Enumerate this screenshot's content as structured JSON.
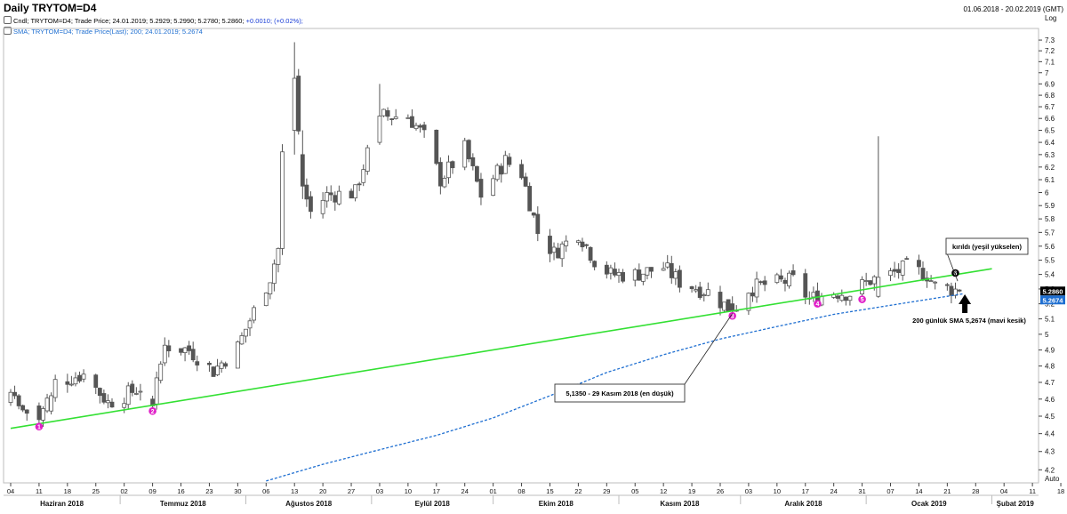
{
  "header": {
    "title": "Daily TRYTOM=D4",
    "date_range": "01.06.2018 - 20.02.2019 (GMT)",
    "legend_candle": "Cndl; TRYTOM=D4; Trade Price; 24.01.2019; 5.2929; 5.2990; 5.2780; 5.2860;",
    "legend_candle_change": "+0.0010; (+0.02%);",
    "legend_sma": "SMA; TRYTOM=D4; Trade Price(Last); 200; 24.01.2019; 5.2674",
    "scale_label": "Log",
    "auto_label": "Auto"
  },
  "colors": {
    "candle": "#555555",
    "trendline": "#33e033",
    "sma": "#1f6fd1",
    "marker": "#e020c8",
    "last_price_box": "#000000",
    "sma_box": "#1f6fd1"
  },
  "chart_data": {
    "type": "candlestick",
    "scale": "log",
    "ylim": [
      4.13,
      7.41
    ],
    "y_ticks": [
      4.2,
      4.3,
      4.4,
      4.5,
      4.6,
      4.7,
      4.8,
      4.9,
      5,
      5.1,
      5.2,
      5.3,
      5.4,
      5.5,
      5.6,
      5.7,
      5.8,
      5.9,
      6,
      6.1,
      6.2,
      6.3,
      6.4,
      6.5,
      6.6,
      6.7,
      6.8,
      6.9,
      7,
      7.1,
      7.2,
      7.3
    ],
    "y_tick_labels": [
      "4.2",
      "4.3",
      "4.4",
      "4.5",
      "4.6",
      "4.7",
      "4.8",
      "4.9",
      "5",
      "5.1",
      "5.2",
      "5.3",
      "5.4",
      "5.5",
      "5.6",
      "5.7",
      "5.8",
      "5.9",
      "6",
      "6.1",
      "6.2",
      "6.3",
      "6.4",
      "6.5",
      "6.6",
      "6.7",
      "6.8",
      "6.9",
      "7",
      "7.1",
      "7.2",
      "7.3"
    ],
    "x_ticks": [
      "04",
      "11",
      "18",
      "25",
      "02",
      "09",
      "16",
      "23",
      "30",
      "06",
      "13",
      "20",
      "27",
      "03",
      "10",
      "17",
      "24",
      "01",
      "08",
      "15",
      "22",
      "29",
      "05",
      "12",
      "19",
      "26",
      "03",
      "10",
      "17",
      "24",
      "31",
      "07",
      "14",
      "21",
      "28",
      "04",
      "11",
      "18"
    ],
    "month_labels": [
      "Haziran 2018",
      "Temmuz 2018",
      "Ağustos 2018",
      "Eylül 2018",
      "Ekim 2018",
      "Kasım 2018",
      "Aralık 2018",
      "Ocak 2019",
      "Şubat 2019"
    ],
    "first_date": "2018-06-04",
    "last_price_label": "5.2860",
    "sma_label": "5.2674",
    "anchors": [
      [
        "2018-06-04",
        4.58
      ],
      [
        "2018-06-11",
        4.48
      ],
      [
        "2018-06-15",
        4.7
      ],
      [
        "2018-06-22",
        4.75
      ],
      [
        "2018-06-28",
        4.58
      ],
      [
        "2018-07-02",
        4.62
      ],
      [
        "2018-07-06",
        4.67
      ],
      [
        "2018-07-09",
        4.56
      ],
      [
        "2018-07-12",
        4.93
      ],
      [
        "2018-07-18",
        4.9
      ],
      [
        "2018-07-24",
        4.77
      ],
      [
        "2018-07-30",
        4.92
      ],
      [
        "2018-08-03",
        5.15
      ],
      [
        "2018-08-07",
        5.38
      ],
      [
        "2018-08-09",
        5.58
      ],
      [
        "2018-08-10",
        6.3
      ],
      [
        "2018-08-13",
        6.95
      ],
      [
        "2018-08-15",
        6.05
      ],
      [
        "2018-08-17",
        5.85
      ],
      [
        "2018-08-21",
        5.98
      ],
      [
        "2018-08-28",
        6.0
      ],
      [
        "2018-09-03",
        6.62
      ],
      [
        "2018-09-10",
        6.62
      ],
      [
        "2018-09-14",
        6.45
      ],
      [
        "2018-09-18",
        6.1
      ],
      [
        "2018-09-24",
        6.35
      ],
      [
        "2018-09-28",
        5.98
      ],
      [
        "2018-10-04",
        6.25
      ],
      [
        "2018-10-08",
        6.15
      ],
      [
        "2018-10-12",
        5.7
      ],
      [
        "2018-10-16",
        5.55
      ],
      [
        "2018-10-22",
        5.7
      ],
      [
        "2018-10-26",
        5.5
      ],
      [
        "2018-10-30",
        5.4
      ],
      [
        "2018-11-05",
        5.4
      ],
      [
        "2018-11-12",
        5.45
      ],
      [
        "2018-11-16",
        5.35
      ],
      [
        "2018-11-23",
        5.28
      ],
      [
        "2018-11-29",
        5.15
      ],
      [
        "2018-12-03",
        5.3
      ],
      [
        "2018-12-07",
        5.33
      ],
      [
        "2018-12-14",
        5.36
      ],
      [
        "2018-12-18",
        5.23
      ],
      [
        "2018-12-24",
        5.28
      ],
      [
        "2018-12-28",
        5.27
      ],
      [
        "2019-01-02",
        5.36
      ],
      [
        "2019-01-07",
        5.4
      ],
      [
        "2019-01-11",
        5.45
      ],
      [
        "2019-01-16",
        5.4
      ],
      [
        "2019-01-18",
        5.32
      ],
      [
        "2019-01-22",
        5.3
      ],
      [
        "2019-01-24",
        5.286
      ]
    ],
    "candles": [
      [
        "2018-06-04",
        4.58,
        4.66,
        4.56,
        4.64
      ],
      [
        "2018-06-05",
        4.64,
        4.68,
        4.6,
        4.62
      ],
      [
        "2018-06-06",
        4.62,
        4.63,
        4.54,
        4.56
      ],
      [
        "2018-06-11",
        4.56,
        4.58,
        4.45,
        4.48
      ],
      [
        "2018-06-14",
        4.53,
        4.64,
        4.51,
        4.62
      ],
      [
        "2018-06-22",
        4.72,
        4.78,
        4.7,
        4.75
      ],
      [
        "2018-07-09",
        4.6,
        4.62,
        4.53,
        4.56
      ],
      [
        "2018-07-12",
        4.82,
        4.98,
        4.8,
        4.93
      ],
      [
        "2018-08-13",
        6.5,
        7.28,
        6.3,
        6.95
      ],
      [
        "2018-08-15",
        6.3,
        6.5,
        5.95,
        6.05
      ],
      [
        "2018-09-03",
        6.4,
        6.9,
        6.38,
        6.62
      ],
      [
        "2018-11-29",
        5.2,
        5.25,
        5.135,
        5.15
      ],
      [
        "2019-01-04",
        5.25,
        6.45,
        5.24,
        5.38
      ],
      [
        "2019-01-24",
        5.2929,
        5.299,
        5.278,
        5.286
      ]
    ],
    "trendline": [
      [
        "2018-06-04",
        4.43
      ],
      [
        "2019-02-01",
        5.44
      ]
    ],
    "sma_200": [
      [
        "2018-08-06",
        4.14
      ],
      [
        "2018-08-20",
        4.23
      ],
      [
        "2018-09-03",
        4.31
      ],
      [
        "2018-09-17",
        4.39
      ],
      [
        "2018-10-01",
        4.49
      ],
      [
        "2018-10-15",
        4.62
      ],
      [
        "2018-10-29",
        4.76
      ],
      [
        "2018-11-12",
        4.87
      ],
      [
        "2018-11-26",
        4.97
      ],
      [
        "2018-12-10",
        5.05
      ],
      [
        "2018-12-24",
        5.13
      ],
      [
        "2019-01-07",
        5.19
      ],
      [
        "2019-01-21",
        5.25
      ],
      [
        "2019-01-25",
        5.2674
      ]
    ],
    "markers": [
      {
        "label": "1",
        "date": "2018-06-11",
        "value": 4.44
      },
      {
        "label": "2",
        "date": "2018-07-09",
        "value": 4.53
      },
      {
        "label": "3",
        "date": "2018-11-29",
        "value": 5.12
      },
      {
        "label": "4",
        "date": "2018-12-20",
        "value": 5.2
      },
      {
        "label": "5",
        "date": "2018-12-31",
        "value": 5.23
      },
      {
        "label": "6",
        "date": "2019-01-23",
        "value": 5.41
      }
    ],
    "annotations": [
      {
        "text": "5,1350 - 29 Kasım 2018 (en düşük)",
        "date": "2018-11-29",
        "value": 5.135
      },
      {
        "text": "kırıldı (yeşil yükselen)",
        "date": "2019-01-24",
        "value": 5.36
      },
      {
        "text": "200 günlük SMA 5,2674 (mavi kesik)",
        "date": "2019-01-25",
        "value": 5.267
      }
    ]
  }
}
